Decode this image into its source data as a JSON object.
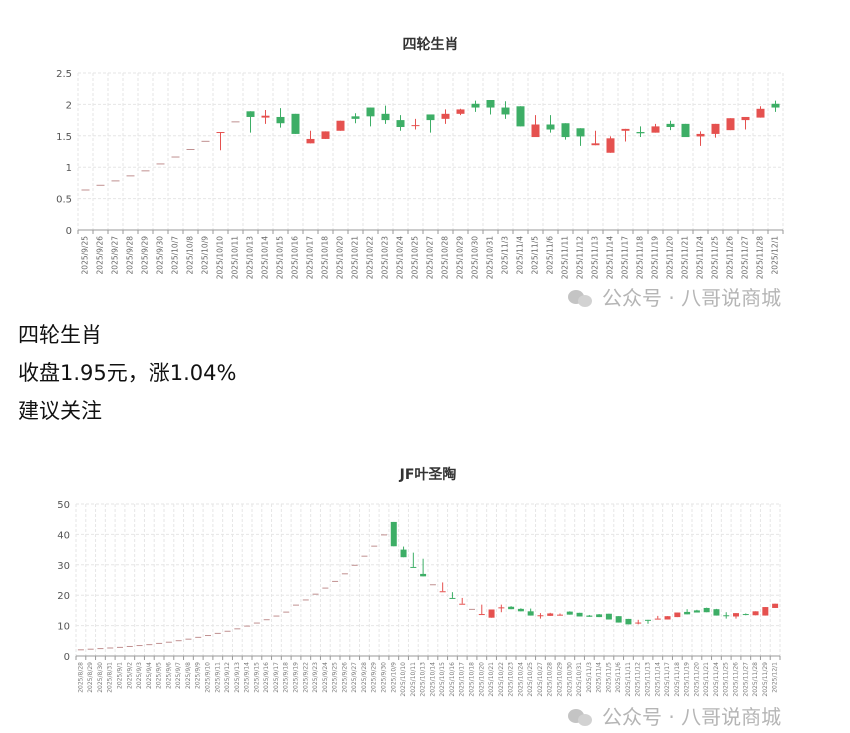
{
  "colors": {
    "up": "#e5514f",
    "down": "#3dae66",
    "flat": "#c09090",
    "grid": "#e6e6e6",
    "axis": "#999999"
  },
  "watermark": {
    "icon": "wechat-icon",
    "text": "公众号 · 八哥说商城"
  },
  "text_block": {
    "line1": "四轮生肖",
    "line2": "收盘1.95元，涨1.04%",
    "line3": "建议关注"
  },
  "chart_data": [
    {
      "type": "candlestick",
      "title": "四轮生肖",
      "ylim": [
        0,
        2.5
      ],
      "yticks": [
        0,
        0.5,
        1,
        1.5,
        2,
        2.5
      ],
      "grid": true,
      "fields": [
        "date",
        "open",
        "close",
        "low",
        "high"
      ],
      "candles": [
        [
          "2025/9/25",
          0.645,
          0.645,
          0.645,
          0.645
        ],
        [
          "2025/9/26",
          0.72,
          0.72,
          0.72,
          0.72
        ],
        [
          "2025/9/27",
          0.79,
          0.79,
          0.79,
          0.79
        ],
        [
          "2025/9/28",
          0.87,
          0.87,
          0.87,
          0.87
        ],
        [
          "2025/9/29",
          0.95,
          0.95,
          0.95,
          0.95
        ],
        [
          "2025/9/30",
          1.06,
          1.06,
          1.06,
          1.06
        ],
        [
          "2025/10/7",
          1.17,
          1.17,
          1.17,
          1.17
        ],
        [
          "2025/10/8",
          1.29,
          1.29,
          1.29,
          1.29
        ],
        [
          "2025/10/9",
          1.42,
          1.42,
          1.42,
          1.42
        ],
        [
          "2025/10/10",
          1.56,
          1.56,
          1.27,
          1.56
        ],
        [
          "2025/10/11",
          1.73,
          1.73,
          1.73,
          1.73
        ],
        [
          "2025/10/13",
          1.89,
          1.8,
          1.55,
          1.89
        ],
        [
          "2025/10/14",
          1.79,
          1.82,
          1.69,
          1.91
        ],
        [
          "2025/10/15",
          1.8,
          1.7,
          1.63,
          1.94
        ],
        [
          "2025/10/16",
          1.85,
          1.53,
          1.53,
          1.85
        ],
        [
          "2025/10/17",
          1.38,
          1.45,
          1.38,
          1.58
        ],
        [
          "2025/10/18",
          1.45,
          1.57,
          1.45,
          1.57
        ],
        [
          "2025/10/20",
          1.58,
          1.74,
          1.58,
          1.74
        ],
        [
          "2025/10/21",
          1.81,
          1.77,
          1.7,
          1.86
        ],
        [
          "2025/10/22",
          1.95,
          1.81,
          1.65,
          1.95
        ],
        [
          "2025/10/23",
          1.85,
          1.75,
          1.69,
          1.98
        ],
        [
          "2025/10/24",
          1.75,
          1.64,
          1.58,
          1.83
        ],
        [
          "2025/10/25",
          1.66,
          1.67,
          1.6,
          1.77
        ],
        [
          "2025/10/27",
          1.84,
          1.75,
          1.55,
          1.84
        ],
        [
          "2025/10/28",
          1.77,
          1.85,
          1.69,
          1.92
        ],
        [
          "2025/10/29",
          1.85,
          1.92,
          1.83,
          1.93
        ],
        [
          "2025/10/30",
          2.01,
          1.95,
          1.88,
          2.06
        ],
        [
          "2025/10/31",
          2.07,
          1.95,
          1.84,
          2.07
        ],
        [
          "2025/11/3",
          1.95,
          1.84,
          1.77,
          2.05
        ],
        [
          "2025/11/4",
          1.97,
          1.65,
          1.65,
          1.97
        ],
        [
          "2025/11/5",
          1.48,
          1.68,
          1.48,
          1.83
        ],
        [
          "2025/11/6",
          1.68,
          1.6,
          1.55,
          1.83
        ],
        [
          "2025/11/11",
          1.7,
          1.48,
          1.44,
          1.7
        ],
        [
          "2025/11/12",
          1.62,
          1.49,
          1.34,
          1.62
        ],
        [
          "2025/11/13",
          1.35,
          1.38,
          1.35,
          1.58
        ],
        [
          "2025/11/14",
          1.23,
          1.46,
          1.23,
          1.49
        ],
        [
          "2025/11/17",
          1.58,
          1.61,
          1.41,
          1.61
        ],
        [
          "2025/11/18",
          1.56,
          1.54,
          1.48,
          1.65
        ],
        [
          "2025/11/19",
          1.55,
          1.65,
          1.55,
          1.69
        ],
        [
          "2025/11/20",
          1.69,
          1.64,
          1.59,
          1.74
        ],
        [
          "2025/11/21",
          1.69,
          1.48,
          1.48,
          1.69
        ],
        [
          "2025/11/24",
          1.49,
          1.53,
          1.34,
          1.57
        ],
        [
          "2025/11/25",
          1.53,
          1.69,
          1.47,
          1.69
        ],
        [
          "2025/11/26",
          1.59,
          1.78,
          1.59,
          1.78
        ],
        [
          "2025/11/27",
          1.75,
          1.8,
          1.6,
          1.8
        ],
        [
          "2025/11/28",
          1.79,
          1.93,
          1.79,
          1.97
        ],
        [
          "2025/12/1",
          2.01,
          1.95,
          1.88,
          2.06
        ]
      ]
    },
    {
      "type": "candlestick",
      "title": "JF叶圣陶",
      "ylim": [
        0,
        50
      ],
      "yticks": [
        0,
        10,
        20,
        30,
        40,
        50
      ],
      "grid": true,
      "fields": [
        "date",
        "open",
        "close",
        "low",
        "high"
      ],
      "candles": [
        [
          "2025/8/28",
          2.2,
          2.2,
          2.2,
          2.2
        ],
        [
          "2025/8/29",
          2.4,
          2.4,
          2.4,
          2.4
        ],
        [
          "2025/8/30",
          2.6,
          2.6,
          2.6,
          2.6
        ],
        [
          "2025/8/31",
          2.8,
          2.8,
          2.8,
          2.8
        ],
        [
          "2025/9/1",
          3.0,
          3.0,
          3.0,
          3.0
        ],
        [
          "2025/9/2",
          3.3,
          3.3,
          3.3,
          3.3
        ],
        [
          "2025/9/3",
          3.6,
          3.6,
          3.6,
          3.6
        ],
        [
          "2025/9/4",
          3.9,
          3.9,
          3.9,
          3.9
        ],
        [
          "2025/9/5",
          4.3,
          4.3,
          4.3,
          4.3
        ],
        [
          "2025/9/6",
          4.7,
          4.7,
          4.7,
          4.7
        ],
        [
          "2025/9/7",
          5.2,
          5.2,
          5.2,
          5.2
        ],
        [
          "2025/9/8",
          5.7,
          5.7,
          5.7,
          5.7
        ],
        [
          "2025/9/9",
          6.3,
          6.3,
          6.3,
          6.3
        ],
        [
          "2025/9/10",
          6.9,
          6.9,
          6.9,
          6.9
        ],
        [
          "2025/9/11",
          7.6,
          7.6,
          7.6,
          7.6
        ],
        [
          "2025/9/12",
          8.3,
          8.3,
          8.3,
          8.3
        ],
        [
          "2025/9/13",
          9.1,
          9.1,
          9.1,
          9.1
        ],
        [
          "2025/9/14",
          10.0,
          10.0,
          10.0,
          10.0
        ],
        [
          "2025/9/15",
          11.0,
          11.0,
          11.0,
          11.0
        ],
        [
          "2025/9/16",
          12.1,
          12.1,
          12.1,
          12.1
        ],
        [
          "2025/9/17",
          13.3,
          13.3,
          13.3,
          13.3
        ],
        [
          "2025/9/18",
          14.6,
          14.6,
          14.6,
          14.6
        ],
        [
          "2025/9/19",
          16.9,
          16.9,
          16.9,
          16.9
        ],
        [
          "2025/9/22",
          18.6,
          18.6,
          18.6,
          18.6
        ],
        [
          "2025/9/23",
          20.5,
          20.5,
          20.5,
          20.5
        ],
        [
          "2025/9/24",
          22.5,
          22.5,
          22.5,
          22.5
        ],
        [
          "2025/9/25",
          24.7,
          24.7,
          24.7,
          24.7
        ],
        [
          "2025/9/26",
          27.2,
          27.2,
          27.2,
          27.2
        ],
        [
          "2025/9/27",
          30.0,
          30.0,
          30.0,
          30.0
        ],
        [
          "2025/9/28",
          33.0,
          33.0,
          33.0,
          33.0
        ],
        [
          "2025/9/29",
          36.3,
          36.3,
          36.3,
          36.3
        ],
        [
          "2025/9/30",
          40.0,
          40.0,
          40.0,
          40.0
        ],
        [
          "2025/10/9",
          44.1,
          36.1,
          36.1,
          44.1
        ],
        [
          "2025/10/10",
          35.0,
          32.5,
          32.5,
          36.0
        ],
        [
          "2025/10/11",
          29.3,
          29.3,
          29.3,
          34.0
        ],
        [
          "2025/10/13",
          27.0,
          26.2,
          26.2,
          32.0
        ],
        [
          "2025/10/14",
          23.6,
          23.6,
          23.6,
          23.6
        ],
        [
          "2025/10/15",
          21.3,
          21.3,
          21.3,
          24.2
        ],
        [
          "2025/10/16",
          19.1,
          19.1,
          19.1,
          21.0
        ],
        [
          "2025/10/17",
          17.2,
          17.2,
          17.2,
          19.1
        ],
        [
          "2025/10/18",
          15.5,
          15.5,
          15.5,
          15.5
        ],
        [
          "2025/10/20",
          13.8,
          13.8,
          13.8,
          16.9
        ],
        [
          "2025/10/21",
          12.6,
          15.3,
          12.6,
          15.3
        ],
        [
          "2025/10/22",
          16.0,
          16.0,
          14.4,
          16.9
        ],
        [
          "2025/10/23",
          16.2,
          15.4,
          15.4,
          16.4
        ],
        [
          "2025/10/24",
          15.5,
          14.7,
          14.7,
          15.7
        ],
        [
          "2025/10/25",
          14.7,
          13.3,
          13.3,
          15.6
        ],
        [
          "2025/10/27",
          13.4,
          13.4,
          12.3,
          14.1
        ],
        [
          "2025/10/28",
          13.2,
          14.0,
          13.2,
          14.2
        ],
        [
          "2025/10/29",
          13.6,
          13.6,
          13.3,
          14.0
        ],
        [
          "2025/10/30",
          14.6,
          13.6,
          13.6,
          14.7
        ],
        [
          "2025/10/31",
          14.2,
          13.0,
          13.0,
          14.2
        ],
        [
          "2025/11/3",
          13.3,
          12.9,
          12.9,
          13.5
        ],
        [
          "2025/11/4",
          13.7,
          12.8,
          12.8,
          13.8
        ],
        [
          "2025/11/5",
          13.9,
          12.0,
          12.0,
          13.9
        ],
        [
          "2025/11/6",
          13.1,
          11.0,
          11.0,
          13.1
        ],
        [
          "2025/11/11",
          12.2,
          10.4,
          10.4,
          12.2
        ],
        [
          "2025/11/12",
          11.0,
          11.0,
          10.4,
          11.9
        ],
        [
          "2025/11/13",
          11.9,
          11.9,
          10.6,
          11.9
        ],
        [
          "2025/11/14",
          12.3,
          12.3,
          12.3,
          13.2
        ],
        [
          "2025/11/17",
          12.0,
          13.1,
          12.0,
          13.1
        ],
        [
          "2025/11/18",
          12.8,
          14.3,
          12.8,
          14.3
        ],
        [
          "2025/11/19",
          14.5,
          13.7,
          13.7,
          15.4
        ],
        [
          "2025/11/20",
          15.0,
          14.3,
          14.3,
          15.2
        ],
        [
          "2025/11/21",
          15.8,
          14.4,
          14.4,
          15.9
        ],
        [
          "2025/11/24",
          15.4,
          13.3,
          13.3,
          15.5
        ],
        [
          "2025/11/25",
          13.4,
          13.4,
          12.3,
          14.4
        ],
        [
          "2025/11/26",
          13.0,
          14.1,
          12.3,
          14.1
        ],
        [
          "2025/11/27",
          13.8,
          13.8,
          13.4,
          14.0
        ],
        [
          "2025/11/28",
          13.4,
          14.7,
          13.4,
          14.7
        ],
        [
          "2025/11/29",
          13.3,
          16.1,
          13.3,
          16.1
        ],
        [
          "2025/12/1",
          15.8,
          17.2,
          15.8,
          17.2
        ]
      ]
    }
  ]
}
